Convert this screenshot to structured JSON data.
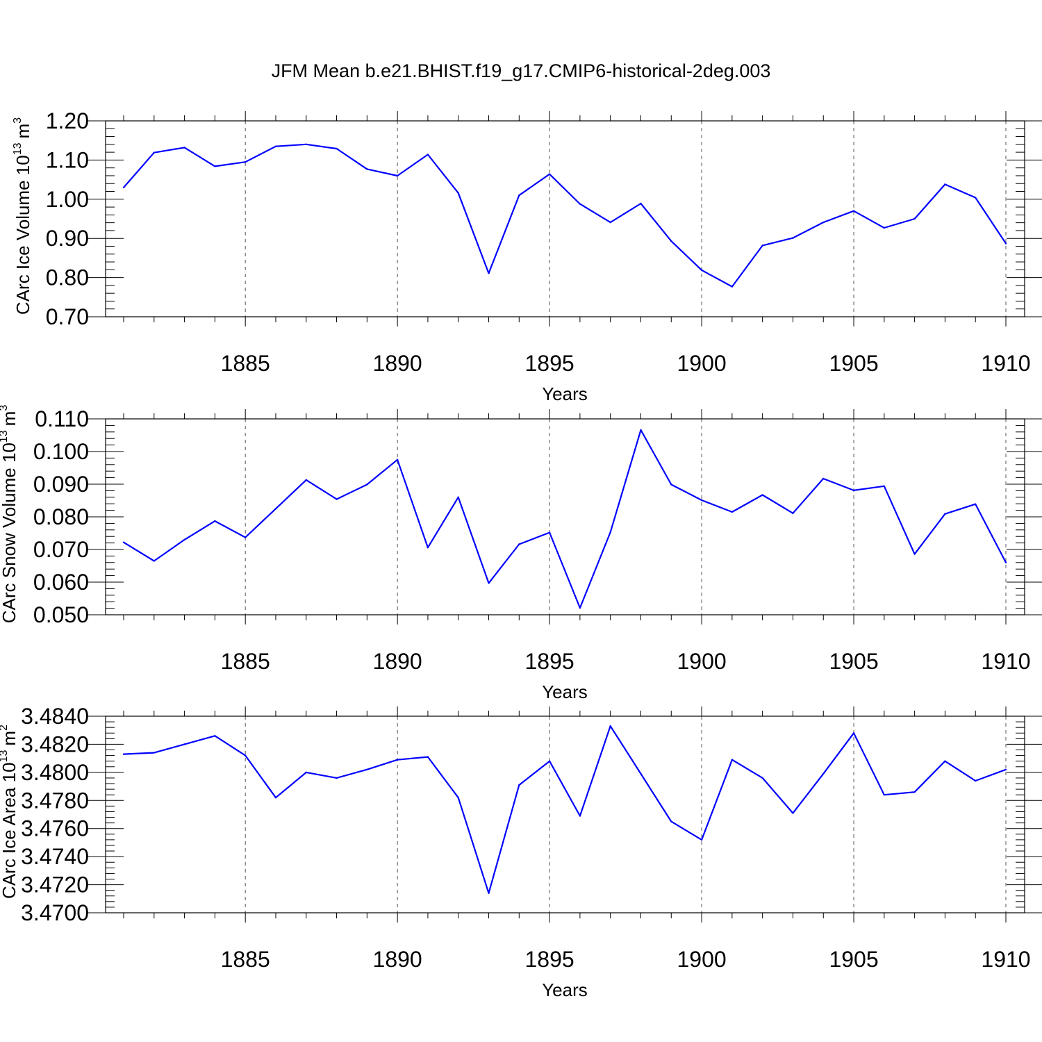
{
  "figure": {
    "title": "JFM Mean b.e21.BHIST.f19_g17.CMIP6-historical-2deg.003"
  },
  "colors": {
    "line": "#0000ff",
    "axis": "#000000",
    "grid": "#555555"
  },
  "chart_data": [
    {
      "type": "line",
      "name": "ice-volume",
      "ylabel_main": "CArc Ice Volume 10",
      "ylabel_sup": "13",
      "ylabel_unit": "m",
      "ylabel_unit_sup": "3",
      "xlabel": "Years",
      "xlim": [
        1881,
        1910
      ],
      "ylim": [
        0.7,
        1.2
      ],
      "xticks": [
        "1885",
        "1890",
        "1895",
        "1900",
        "1905",
        "1910"
      ],
      "yticks": [
        "0.70",
        "0.80",
        "0.90",
        "1.00",
        "1.10",
        "1.20"
      ],
      "x": [
        1881,
        1882,
        1883,
        1884,
        1885,
        1886,
        1887,
        1888,
        1889,
        1890,
        1891,
        1892,
        1893,
        1894,
        1895,
        1896,
        1897,
        1898,
        1899,
        1900,
        1901,
        1902,
        1903,
        1904,
        1905,
        1906,
        1907,
        1908,
        1909,
        1910
      ],
      "values": [
        1.03,
        1.119,
        1.132,
        1.084,
        1.095,
        1.135,
        1.14,
        1.129,
        1.077,
        1.06,
        1.114,
        1.016,
        0.811,
        1.01,
        1.064,
        0.988,
        0.941,
        0.989,
        0.893,
        0.819,
        0.777,
        0.882,
        0.901,
        0.941,
        0.97,
        0.927,
        0.95,
        1.038,
        1.004,
        0.887
      ]
    },
    {
      "type": "line",
      "name": "snow-volume",
      "ylabel_main": "CArc Snow Volume 10",
      "ylabel_sup": "13",
      "ylabel_unit": "m",
      "ylabel_unit_sup": "3",
      "xlabel": "Years",
      "xlim": [
        1881,
        1910
      ],
      "ylim": [
        0.05,
        0.11
      ],
      "xticks": [
        "1885",
        "1890",
        "1895",
        "1900",
        "1905",
        "1910"
      ],
      "yticks": [
        "0.050",
        "0.060",
        "0.070",
        "0.080",
        "0.090",
        "0.100",
        "0.110"
      ],
      "x": [
        1881,
        1882,
        1883,
        1884,
        1885,
        1886,
        1887,
        1888,
        1889,
        1890,
        1891,
        1892,
        1893,
        1894,
        1895,
        1896,
        1897,
        1898,
        1899,
        1900,
        1901,
        1902,
        1903,
        1904,
        1905,
        1906,
        1907,
        1908,
        1909,
        1910
      ],
      "values": [
        0.0722,
        0.0665,
        0.073,
        0.0787,
        0.0737,
        0.0825,
        0.0913,
        0.0854,
        0.0899,
        0.0975,
        0.0706,
        0.086,
        0.0597,
        0.0716,
        0.0752,
        0.0521,
        0.0753,
        0.1066,
        0.0899,
        0.0851,
        0.0815,
        0.0867,
        0.0811,
        0.0917,
        0.0881,
        0.0894,
        0.0686,
        0.0809,
        0.0839,
        0.066
      ]
    },
    {
      "type": "line",
      "name": "ice-area",
      "ylabel_main": "CArc Ice Area 10",
      "ylabel_sup": "13",
      "ylabel_unit": "m",
      "ylabel_unit_sup": "2",
      "xlabel": "Years",
      "xlim": [
        1881,
        1910
      ],
      "ylim": [
        3.47,
        3.484
      ],
      "xticks": [
        "1885",
        "1890",
        "1895",
        "1900",
        "1905",
        "1910"
      ],
      "yticks": [
        "3.4700",
        "3.4720",
        "3.4740",
        "3.4760",
        "3.4780",
        "3.4800",
        "3.4820",
        "3.4840"
      ],
      "x": [
        1881,
        1882,
        1883,
        1884,
        1885,
        1886,
        1887,
        1888,
        1889,
        1890,
        1891,
        1892,
        1893,
        1894,
        1895,
        1896,
        1897,
        1898,
        1899,
        1900,
        1901,
        1902,
        1903,
        1904,
        1905,
        1906,
        1907,
        1908,
        1909,
        1910
      ],
      "values": [
        3.4813,
        3.4814,
        3.482,
        3.4826,
        3.4812,
        3.4782,
        3.48,
        3.4796,
        3.4802,
        3.4809,
        3.4811,
        3.4782,
        3.4714,
        3.4791,
        3.4808,
        3.4769,
        3.4833,
        3.4799,
        3.4765,
        3.4752,
        3.4809,
        3.4796,
        3.4771,
        3.4799,
        3.4828,
        3.4784,
        3.4786,
        3.4808,
        3.4794,
        3.4802
      ]
    }
  ]
}
